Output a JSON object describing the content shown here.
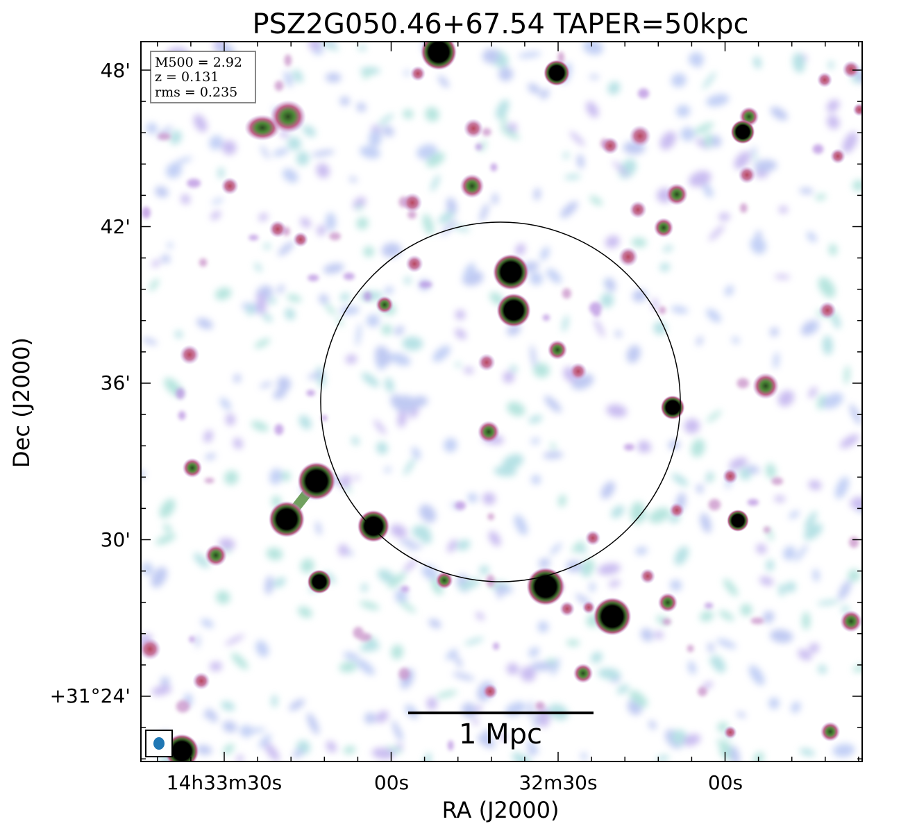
{
  "title": "PSZ2G050.46+67.54 TAPER=50kpc",
  "axes": {
    "xlabel": "RA (J2000)",
    "ylabel": "Dec (J2000)",
    "xticks": [
      "14h33m30s",
      "00s",
      "32m30s",
      "00s"
    ],
    "yticks": [
      "48'",
      "42'",
      "36'",
      "30'",
      "+31°24'"
    ]
  },
  "info_box": {
    "m500": "M500 = 2.92",
    "redshift": "z = 0.131",
    "rms": "rms = 0.235"
  },
  "scale_bar": {
    "label": "1 Mpc"
  },
  "colors": {
    "faint_emission": "#a8d8e0",
    "low_emission": "#b0b4f0",
    "mid_emission": "#c87090",
    "high_emission": "#4a7a30",
    "peak_emission": "#000000",
    "beam": "#1f77b4"
  }
}
